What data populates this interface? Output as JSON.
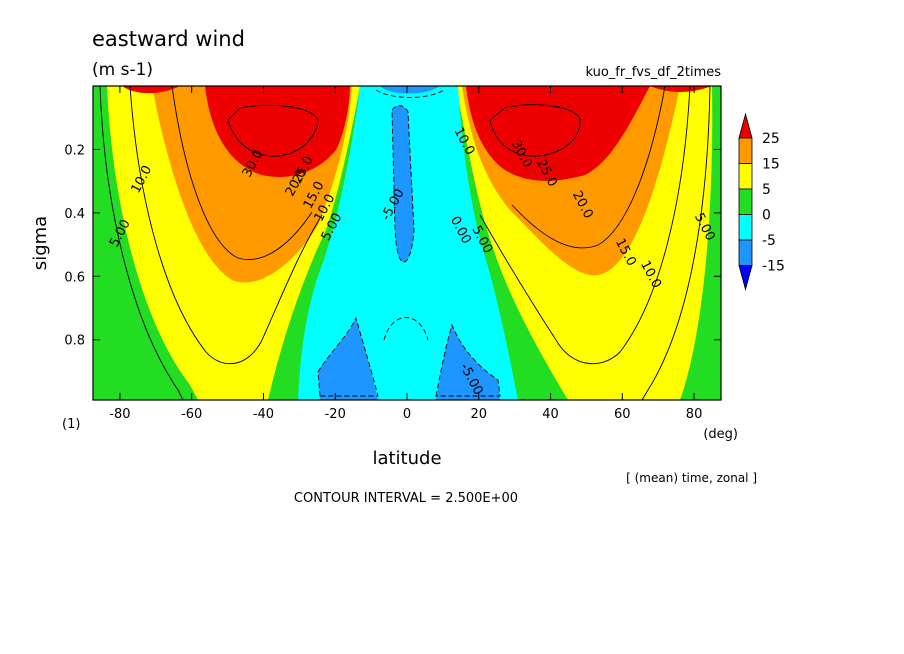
{
  "chart_data": {
    "type": "contour",
    "title": "eastward wind",
    "units": "(m s-1)",
    "run_label": "kuo_fr_fvs_df_2times",
    "xlabel": "latitude",
    "xunit": "(deg)",
    "ylabel": "sigma",
    "panel_label": "(1)",
    "xlim": [
      -87.5,
      87.5
    ],
    "ylim": [
      0.0,
      0.99
    ],
    "y_inverted": true,
    "xticks": [
      -80,
      -60,
      -40,
      -20,
      0,
      20,
      40,
      60,
      80
    ],
    "xtick_labels": [
      "-80",
      "-60",
      "-40",
      "-20",
      "0",
      "20",
      "40",
      "60",
      "80"
    ],
    "yticks": [
      0.2,
      0.4,
      0.6,
      0.8
    ],
    "ytick_labels": [
      "0.2",
      "0.4",
      "0.6",
      "0.8"
    ],
    "colorbar": {
      "levels": [
        "25",
        "15",
        "5",
        "0",
        "-5",
        "-15"
      ],
      "bins": [
        {
          "range": "> 25",
          "color": "#ee0000"
        },
        {
          "range": "15 to 25",
          "color": "#ff9900"
        },
        {
          "range": "5 to 15",
          "color": "#ffff00"
        },
        {
          "range": "0 to 5",
          "color": "#22dd22"
        },
        {
          "range": "-5 to 0",
          "color": "#00ffff"
        },
        {
          "range": "-15 to -5",
          "color": "#1e96ff"
        },
        {
          "range": "< -15",
          "color": "#0000ff"
        }
      ]
    },
    "contour_labels": [
      {
        "text": "30.0",
        "lat": -42,
        "sigma": 0.25
      },
      {
        "text": "25.0",
        "lat": -28,
        "sigma": 0.27
      },
      {
        "text": "20.0",
        "lat": -30,
        "sigma": 0.31
      },
      {
        "text": "15.0",
        "lat": -25,
        "sigma": 0.35
      },
      {
        "text": "10.0",
        "lat": -22,
        "sigma": 0.39
      },
      {
        "text": "5.00",
        "lat": -20,
        "sigma": 0.45
      },
      {
        "text": "10.0",
        "lat": -73,
        "sigma": 0.3
      },
      {
        "text": "5.00",
        "lat": -79,
        "sigma": 0.47
      },
      {
        "text": "-5.00",
        "lat": -3,
        "sigma": 0.38
      },
      {
        "text": "0.00",
        "lat": 14,
        "sigma": 0.46
      },
      {
        "text": "5.00",
        "lat": 20,
        "sigma": 0.49
      },
      {
        "text": "10.0",
        "lat": 15,
        "sigma": 0.18
      },
      {
        "text": "30.0",
        "lat": 31,
        "sigma": 0.22
      },
      {
        "text": "25.0",
        "lat": 38,
        "sigma": 0.28
      },
      {
        "text": "20.0",
        "lat": 48,
        "sigma": 0.38
      },
      {
        "text": "15.0",
        "lat": 60,
        "sigma": 0.53
      },
      {
        "text": "10.0",
        "lat": 67,
        "sigma": 0.6
      },
      {
        "text": "5.00",
        "lat": 82,
        "sigma": 0.45
      },
      {
        "text": "-5.00",
        "lat": 17,
        "sigma": 0.93
      }
    ],
    "contour_interval_label": "CONTOUR INTERVAL = 2.500E+00",
    "averaging_label": "[ (mean) time, zonal ]"
  }
}
